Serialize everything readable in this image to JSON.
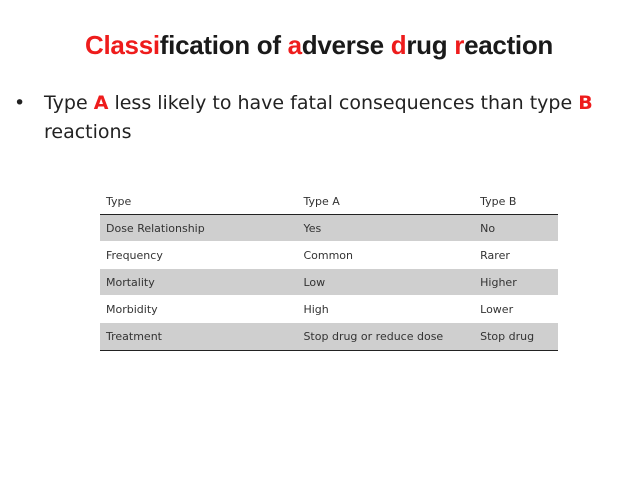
{
  "title": {
    "segments": [
      {
        "text": "Classi",
        "style": "red"
      },
      {
        "text": "fication of ",
        "style": "dark"
      },
      {
        "text": "a",
        "style": "red"
      },
      {
        "text": "dverse ",
        "style": "dark"
      },
      {
        "text": "d",
        "style": "red"
      },
      {
        "text": "rug ",
        "style": "dark"
      },
      {
        "text": "r",
        "style": "red"
      },
      {
        "text": "eaction",
        "style": "dark"
      }
    ]
  },
  "bullet": {
    "marker": "•",
    "pre": "Type ",
    "type_a": "A",
    "mid": " less likely to have fatal consequences than type ",
    "type_b": "B",
    "post": " reactions"
  },
  "table": {
    "headers": [
      "Type",
      "Type A",
      "Type B"
    ],
    "rows": [
      [
        "Dose Relationship",
        "Yes",
        "No"
      ],
      [
        "Frequency",
        "Common",
        "Rarer"
      ],
      [
        "Mortality",
        "Low",
        "Higher"
      ],
      [
        "Morbidity",
        "High",
        "Lower"
      ],
      [
        "Treatment",
        "Stop drug or reduce dose",
        "Stop drug"
      ]
    ]
  },
  "colors": {
    "accent_red": "#ee1c1c",
    "row_shade": "#cfcfcf"
  }
}
